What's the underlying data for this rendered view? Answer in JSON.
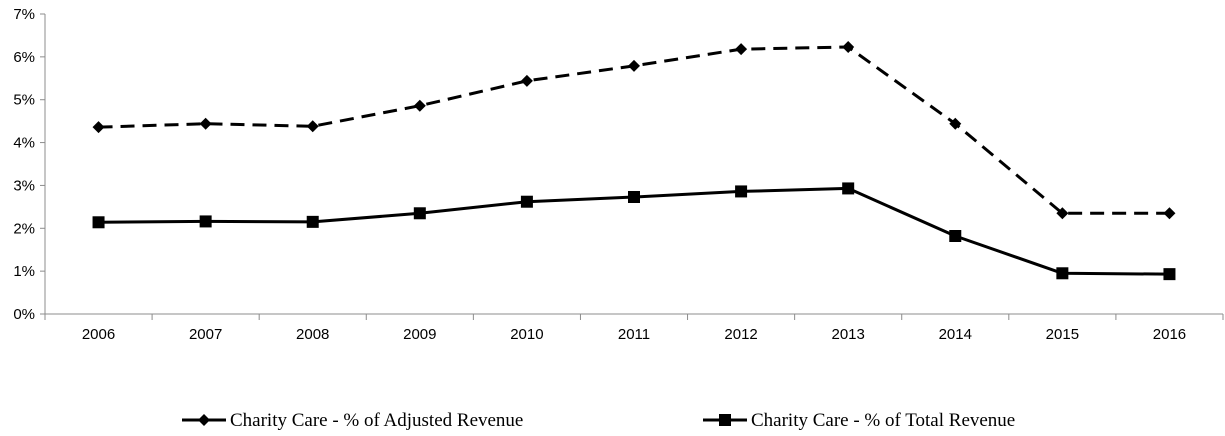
{
  "chart_data": {
    "type": "line",
    "title": "",
    "xlabel": "",
    "ylabel": "",
    "categories": [
      "2006",
      "2007",
      "2008",
      "2009",
      "2010",
      "2011",
      "2012",
      "2013",
      "2014",
      "2015",
      "2016"
    ],
    "y_ticks": [
      "0%",
      "1%",
      "2%",
      "3%",
      "4%",
      "5%",
      "6%",
      "7%"
    ],
    "ylim": [
      0,
      7
    ],
    "y_unit": "%",
    "grid": false,
    "legend_position": "bottom",
    "series": [
      {
        "name": "Charity Care - % of Adjusted Revenue",
        "values": [
          4.36,
          4.44,
          4.38,
          4.86,
          5.44,
          5.79,
          6.18,
          6.23,
          4.44,
          2.35,
          2.35
        ],
        "line_style": "dashed",
        "marker": "diamond",
        "color": "#000000"
      },
      {
        "name": "Charity Care - % of Total Revenue",
        "values": [
          2.14,
          2.16,
          2.15,
          2.35,
          2.62,
          2.73,
          2.86,
          2.93,
          1.82,
          0.95,
          0.93
        ],
        "line_style": "solid",
        "marker": "square",
        "color": "#000000"
      }
    ]
  }
}
